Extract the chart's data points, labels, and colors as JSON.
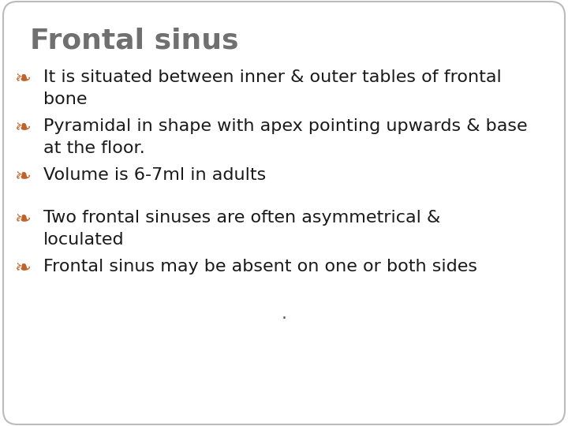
{
  "title": "Frontal sinus",
  "title_color": "#707070",
  "title_fontsize": 26,
  "bullet_symbol": "❧",
  "bullet_color": "#c0622a",
  "text_color": "#1a1a1a",
  "text_fontsize": 16,
  "background_color": "#ffffff",
  "border_color": "#bbbbbb",
  "bullets": [
    {
      "line1": "It is situated between inner & outer tables of frontal",
      "line2": "bone"
    },
    {
      "line1": "Pyramidal in shape with apex pointing upwards & base",
      "line2": "at the floor."
    },
    {
      "line1": "Volume is 6-7ml in adults",
      "line2": null
    },
    {
      "line1": "Two frontal sinuses are often asymmetrical &",
      "line2": "loculated"
    },
    {
      "line1": "Frontal sinus may be absent on one or both sides",
      "line2": null
    }
  ],
  "dot_text": ".",
  "dot_color": "#555555",
  "fig_width": 7.2,
  "fig_height": 5.4,
  "dpi": 100
}
